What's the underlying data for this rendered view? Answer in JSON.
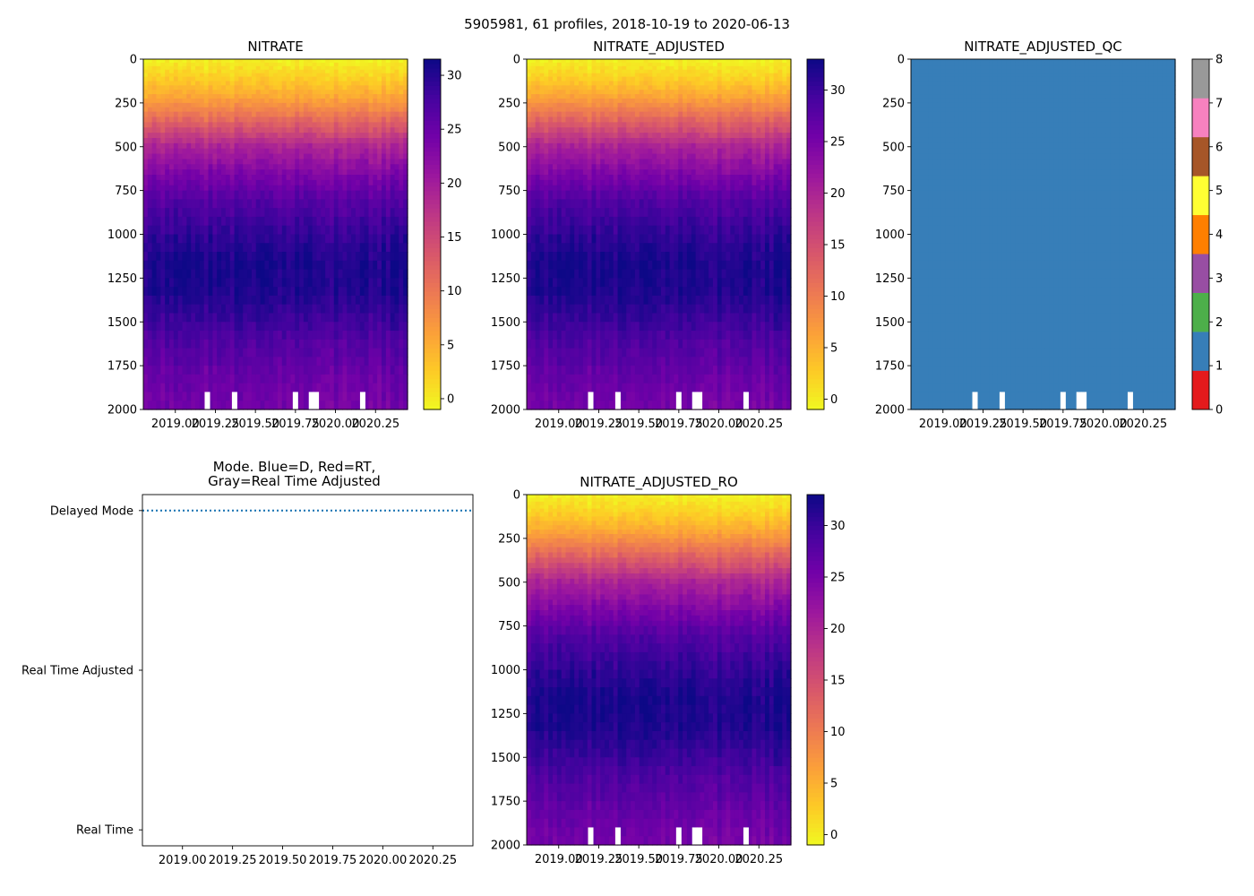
{
  "figure_title": "5905981, 61 profiles, 2018-10-19 to 2020-06-13",
  "colors": {
    "plasma_stops": [
      "#f0f921",
      "#fdca26",
      "#fb9f3a",
      "#ed7953",
      "#d8576b",
      "#bd3786",
      "#9c179e",
      "#7201a8",
      "#46039f",
      "#0d0887"
    ],
    "qc_colors": [
      "#e41a1c",
      "#377eb8",
      "#4daf4a",
      "#984ea3",
      "#ff7f00",
      "#ffff33",
      "#a65628",
      "#f781bf",
      "#999999"
    ],
    "mode_line": "#1f77b4"
  },
  "chart_data": [
    {
      "id": "nitrate",
      "type": "heatmap",
      "title": "NITRATE",
      "colormap": "plasma_r",
      "x_range": [
        2018.8,
        2020.45
      ],
      "x_ticks": [
        2019.0,
        2019.25,
        2019.5,
        2019.75,
        2020.0,
        2020.25
      ],
      "x_tick_labels": [
        "2019.00",
        "2019.25",
        "2019.50",
        "2019.75",
        "2020.00",
        "2020.25"
      ],
      "y_range": [
        2000,
        0
      ],
      "y_ticks": [
        0,
        250,
        500,
        750,
        1000,
        1250,
        1500,
        1750,
        2000
      ],
      "y_tick_labels": [
        "0",
        "250",
        "500",
        "750",
        "1000",
        "1250",
        "1500",
        "1750",
        "2000"
      ],
      "colorbar": {
        "range": [
          -1,
          31.5
        ],
        "ticks": [
          0,
          5,
          10,
          15,
          20,
          25,
          30
        ],
        "tick_labels": [
          "0",
          "5",
          "10",
          "15",
          "20",
          "25",
          "30"
        ]
      },
      "depth_profile": [
        {
          "depth": 0,
          "value": -0.5
        },
        {
          "depth": 100,
          "value": 2
        },
        {
          "depth": 200,
          "value": 5
        },
        {
          "depth": 300,
          "value": 9
        },
        {
          "depth": 400,
          "value": 14
        },
        {
          "depth": 500,
          "value": 19
        },
        {
          "depth": 650,
          "value": 23
        },
        {
          "depth": 800,
          "value": 26.5
        },
        {
          "depth": 1000,
          "value": 29
        },
        {
          "depth": 1150,
          "value": 30.5
        },
        {
          "depth": 1300,
          "value": 30.5
        },
        {
          "depth": 1450,
          "value": 29
        },
        {
          "depth": 1600,
          "value": 27
        },
        {
          "depth": 1800,
          "value": 25
        },
        {
          "depth": 2000,
          "value": 24
        }
      ],
      "missing_bottom": [
        {
          "x": 2019.2,
          "top_depth": 1900
        },
        {
          "x": 2019.37,
          "top_depth": 1900
        },
        {
          "x": 2019.75,
          "top_depth": 1900
        },
        {
          "x": 2019.85,
          "top_depth": 1900
        },
        {
          "x": 2019.88,
          "top_depth": 1900
        },
        {
          "x": 2020.17,
          "top_depth": 1900
        }
      ]
    },
    {
      "id": "nitrate_adjusted",
      "type": "heatmap",
      "title": "NITRATE_ADJUSTED",
      "colormap": "plasma_r",
      "x_range": [
        2018.8,
        2020.45
      ],
      "x_ticks": [
        2019.0,
        2019.25,
        2019.5,
        2019.75,
        2020.0,
        2020.25
      ],
      "x_tick_labels": [
        "2019.00",
        "2019.25",
        "2019.50",
        "2019.75",
        "2020.00",
        "2020.25"
      ],
      "y_range": [
        2000,
        0
      ],
      "y_ticks": [
        0,
        250,
        500,
        750,
        1000,
        1250,
        1500,
        1750,
        2000
      ],
      "y_tick_labels": [
        "0",
        "250",
        "500",
        "750",
        "1000",
        "1250",
        "1500",
        "1750",
        "2000"
      ],
      "colorbar": {
        "range": [
          -1,
          33
        ],
        "ticks": [
          0,
          5,
          10,
          15,
          20,
          25,
          30
        ],
        "tick_labels": [
          "0",
          "5",
          "10",
          "15",
          "20",
          "25",
          "30"
        ]
      },
      "depth_profile": [
        {
          "depth": 0,
          "value": -0.5
        },
        {
          "depth": 100,
          "value": 2
        },
        {
          "depth": 200,
          "value": 5.5
        },
        {
          "depth": 300,
          "value": 10
        },
        {
          "depth": 400,
          "value": 15
        },
        {
          "depth": 500,
          "value": 20
        },
        {
          "depth": 650,
          "value": 24
        },
        {
          "depth": 800,
          "value": 28
        },
        {
          "depth": 1000,
          "value": 30.5
        },
        {
          "depth": 1150,
          "value": 32
        },
        {
          "depth": 1300,
          "value": 32
        },
        {
          "depth": 1450,
          "value": 30.5
        },
        {
          "depth": 1600,
          "value": 28.5
        },
        {
          "depth": 1800,
          "value": 26.5
        },
        {
          "depth": 2000,
          "value": 25
        }
      ],
      "missing_bottom": [
        {
          "x": 2019.2,
          "top_depth": 1900
        },
        {
          "x": 2019.37,
          "top_depth": 1900
        },
        {
          "x": 2019.75,
          "top_depth": 1900
        },
        {
          "x": 2019.85,
          "top_depth": 1900
        },
        {
          "x": 2019.88,
          "top_depth": 1900
        },
        {
          "x": 2020.17,
          "top_depth": 1900
        }
      ]
    },
    {
      "id": "nitrate_adjusted_qc",
      "type": "heatmap",
      "title": "NITRATE_ADJUSTED_QC",
      "colormap": "qc_categorical",
      "x_range": [
        2018.8,
        2020.45
      ],
      "x_ticks": [
        2019.0,
        2019.25,
        2019.5,
        2019.75,
        2020.0,
        2020.25
      ],
      "x_tick_labels": [
        "2019.00",
        "2019.25",
        "2019.50",
        "2019.75",
        "2020.00",
        "2020.25"
      ],
      "y_range": [
        2000,
        0
      ],
      "y_ticks": [
        0,
        250,
        500,
        750,
        1000,
        1250,
        1500,
        1750,
        2000
      ],
      "y_tick_labels": [
        "0",
        "250",
        "500",
        "750",
        "1000",
        "1250",
        "1500",
        "1750",
        "2000"
      ],
      "fill_flag": 1,
      "colorbar": {
        "range": [
          0,
          8
        ],
        "ticks": [
          0,
          1,
          2,
          3,
          4,
          5,
          6,
          7,
          8
        ],
        "tick_labels": [
          "0",
          "1",
          "2",
          "3",
          "4",
          "5",
          "6",
          "7",
          "8"
        ]
      },
      "missing_bottom": [
        {
          "x": 2019.2,
          "top_depth": 1900
        },
        {
          "x": 2019.37,
          "top_depth": 1900
        },
        {
          "x": 2019.75,
          "top_depth": 1900
        },
        {
          "x": 2019.85,
          "top_depth": 1900
        },
        {
          "x": 2019.88,
          "top_depth": 1900
        },
        {
          "x": 2020.17,
          "top_depth": 1900
        }
      ]
    },
    {
      "id": "mode",
      "type": "line",
      "title_lines": [
        "Mode. Blue=D, Red=RT,",
        "Gray=Real Time Adjusted"
      ],
      "x_range": [
        2018.8,
        2020.45
      ],
      "x_ticks": [
        2019.0,
        2019.25,
        2019.5,
        2019.75,
        2020.0,
        2020.25
      ],
      "x_tick_labels": [
        "2019.00",
        "2019.25",
        "2019.50",
        "2019.75",
        "2020.00",
        "2020.25"
      ],
      "y_categories": [
        "Real Time",
        "Real Time Adjusted",
        "Delayed Mode"
      ],
      "y_range": [
        -0.1,
        2.1
      ],
      "series": [
        {
          "name": "Delayed Mode",
          "style": "dotted",
          "x_start": 2018.8,
          "x_end": 2020.45,
          "y": 2
        }
      ]
    },
    {
      "id": "nitrate_adjusted_ro",
      "type": "heatmap",
      "title": "NITRATE_ADJUSTED_RO",
      "colormap": "plasma_r",
      "x_range": [
        2018.8,
        2020.45
      ],
      "x_ticks": [
        2019.0,
        2019.25,
        2019.5,
        2019.75,
        2020.0,
        2020.25
      ],
      "x_tick_labels": [
        "2019.00",
        "2019.25",
        "2019.50",
        "2019.75",
        "2020.00",
        "2020.25"
      ],
      "y_range": [
        2000,
        0
      ],
      "y_ticks": [
        0,
        250,
        500,
        750,
        1000,
        1250,
        1500,
        1750,
        2000
      ],
      "y_tick_labels": [
        "0",
        "250",
        "500",
        "750",
        "1000",
        "1250",
        "1500",
        "1750",
        "2000"
      ],
      "colorbar": {
        "range": [
          -1,
          33
        ],
        "ticks": [
          0,
          5,
          10,
          15,
          20,
          25,
          30
        ],
        "tick_labels": [
          "0",
          "5",
          "10",
          "15",
          "20",
          "25",
          "30"
        ]
      },
      "depth_profile": [
        {
          "depth": 0,
          "value": -0.5
        },
        {
          "depth": 100,
          "value": 2
        },
        {
          "depth": 200,
          "value": 5.5
        },
        {
          "depth": 300,
          "value": 10
        },
        {
          "depth": 400,
          "value": 15
        },
        {
          "depth": 500,
          "value": 20
        },
        {
          "depth": 650,
          "value": 24
        },
        {
          "depth": 800,
          "value": 28
        },
        {
          "depth": 1000,
          "value": 30.5
        },
        {
          "depth": 1150,
          "value": 32
        },
        {
          "depth": 1300,
          "value": 32
        },
        {
          "depth": 1450,
          "value": 30.5
        },
        {
          "depth": 1600,
          "value": 28.5
        },
        {
          "depth": 1800,
          "value": 26.5
        },
        {
          "depth": 2000,
          "value": 25
        }
      ],
      "missing_bottom": [
        {
          "x": 2019.2,
          "top_depth": 1900
        },
        {
          "x": 2019.37,
          "top_depth": 1900
        },
        {
          "x": 2019.75,
          "top_depth": 1900
        },
        {
          "x": 2019.85,
          "top_depth": 1900
        },
        {
          "x": 2019.88,
          "top_depth": 1900
        },
        {
          "x": 2020.17,
          "top_depth": 1900
        }
      ]
    }
  ]
}
